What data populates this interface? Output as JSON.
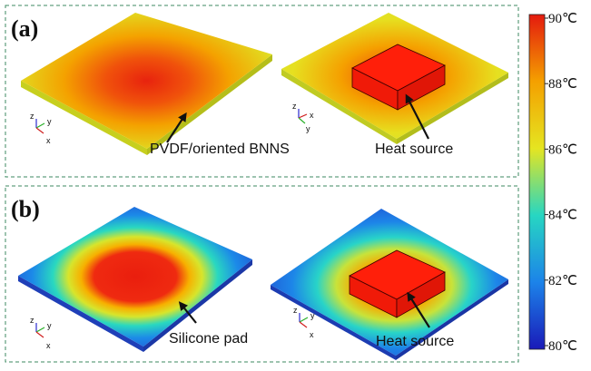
{
  "panels": {
    "a": {
      "label": "(a)",
      "left_callout": "PVDF/oriented BNNS",
      "right_callout": "Heat source",
      "left_axes": {
        "z": "z",
        "y": "y",
        "x": "x"
      },
      "right_axes": {
        "z": "z",
        "x": "x",
        "y": "y"
      }
    },
    "b": {
      "label": "(b)",
      "left_callout": "Silicone pad",
      "right_callout": "Heat source",
      "left_axes": {
        "z": "z",
        "y": "y",
        "x": "x"
      },
      "right_axes": {
        "z": "z",
        "y": "y",
        "x": "x"
      }
    }
  },
  "colorbar": {
    "ticks": [
      "90℃",
      "88℃",
      "86℃",
      "84℃",
      "82℃",
      "80℃"
    ],
    "colors": [
      "#e41a0e",
      "#f4a000",
      "#e5e521",
      "#27d6c2",
      "#1c83e9",
      "#1a1ab8"
    ]
  },
  "colors": {
    "heat_source": "#ff1f0a",
    "panel_border": "#3d8a62"
  }
}
